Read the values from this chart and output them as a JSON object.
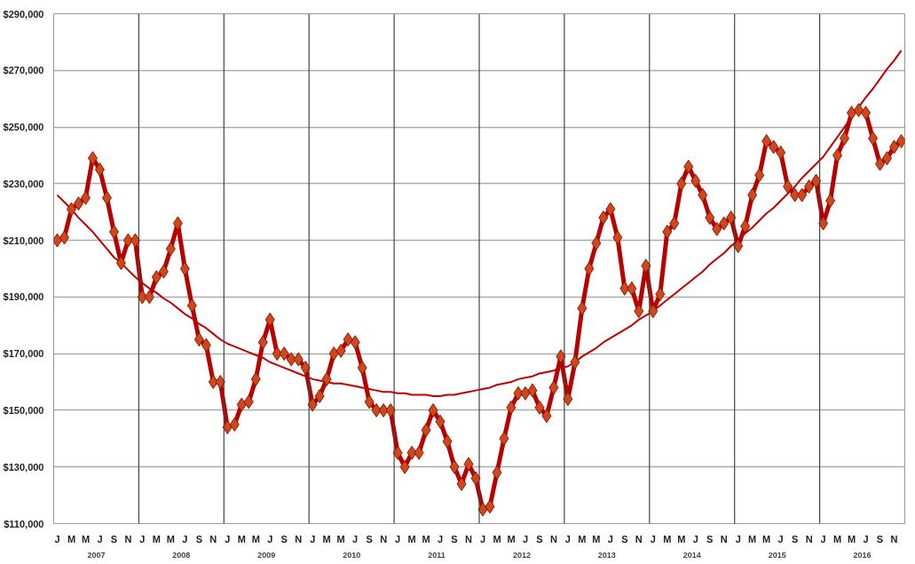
{
  "chart_data": {
    "type": "line",
    "categories": [
      "J",
      null,
      "M",
      null,
      "M",
      null,
      "J",
      null,
      "S",
      null,
      "N",
      null,
      "J",
      null,
      "M",
      null,
      "M",
      null,
      "J",
      null,
      "S",
      null,
      "N",
      null,
      "J",
      null,
      "M",
      null,
      "M",
      null,
      "J",
      null,
      "S",
      null,
      "N",
      null,
      "J",
      null,
      "M",
      null,
      "M",
      null,
      "J",
      null,
      "S",
      null,
      "N",
      null,
      "J",
      null,
      "M",
      null,
      "M",
      null,
      "J",
      null,
      "S",
      null,
      "N",
      null,
      "J",
      null,
      "M",
      null,
      "M",
      null,
      "J",
      null,
      "S",
      null,
      "N",
      null,
      "J",
      null,
      "M",
      null,
      "M",
      null,
      "J",
      null,
      "S",
      null,
      "N",
      null,
      "J",
      null,
      "M",
      null,
      "M",
      null,
      "J",
      null,
      "S",
      null,
      "N",
      null,
      "J",
      null,
      "M",
      null,
      "M",
      null,
      "J",
      null,
      "S",
      null,
      "N",
      null,
      "J",
      null,
      "M",
      null,
      "M",
      null,
      "J",
      null,
      "S",
      null,
      "N",
      null
    ],
    "series": [
      {
        "type": "line",
        "color": "#b80000",
        "marker": "diamond",
        "values": [
          210000,
          211000,
          221000,
          223000,
          225000,
          239000,
          235000,
          225000,
          213000,
          202000,
          210000,
          210000,
          190000,
          190000,
          197000,
          199000,
          207000,
          216000,
          200000,
          187000,
          175000,
          173000,
          160000,
          160000,
          144000,
          145000,
          152000,
          153000,
          161000,
          174000,
          182000,
          170000,
          170000,
          168000,
          168000,
          165000,
          152000,
          155000,
          161000,
          170000,
          171000,
          175000,
          174000,
          165000,
          153000,
          150000,
          150000,
          150000,
          135000,
          130000,
          135000,
          135000,
          143000,
          150000,
          146000,
          139000,
          130000,
          124000,
          131000,
          126000,
          115000,
          116000,
          128000,
          140000,
          151000,
          156000,
          156000,
          157000,
          151000,
          148000,
          158000,
          169000,
          154000,
          167000,
          186000,
          200000,
          209000,
          218000,
          221000,
          211000,
          193000,
          193000,
          185000,
          201000,
          185000,
          191000,
          213000,
          216000,
          230000,
          236000,
          231000,
          226000,
          218000,
          214000,
          216000,
          218000,
          208000,
          215000,
          226000,
          233000,
          245000,
          243000,
          241000,
          229000,
          226000,
          226000,
          229000,
          231000,
          216000,
          224000,
          240000,
          246000,
          255000,
          256000,
          255000,
          246000,
          237000,
          239000,
          243000,
          245000
        ]
      },
      {
        "type": "line",
        "color": "#c00000",
        "marker": "none",
        "values": [
          226000,
          223500,
          221000,
          218000,
          215500,
          213000,
          210000,
          207000,
          204000,
          202000,
          199500,
          197000,
          195000,
          193000,
          191500,
          189500,
          188000,
          186000,
          184000,
          182500,
          180500,
          179000,
          177000,
          175000,
          173500,
          172500,
          171500,
          170500,
          169500,
          168500,
          167000,
          166000,
          165000,
          164000,
          163000,
          162000,
          161000,
          160500,
          160000,
          159500,
          159500,
          159000,
          158500,
          158000,
          157500,
          157000,
          156500,
          156500,
          156000,
          156000,
          155500,
          155500,
          155500,
          155000,
          155000,
          155500,
          155500,
          156000,
          156500,
          157000,
          157500,
          158000,
          159000,
          159500,
          160000,
          161000,
          161500,
          162000,
          163000,
          163500,
          164000,
          165000,
          165500,
          167000,
          169000,
          170500,
          172000,
          174000,
          175500,
          177000,
          178500,
          180000,
          182000,
          183500,
          185000,
          187000,
          189000,
          191000,
          193000,
          195000,
          197000,
          199000,
          201500,
          203500,
          205500,
          208000,
          210000,
          212500,
          214500,
          217000,
          219500,
          221500,
          224000,
          226500,
          229000,
          232000,
          234500,
          237000,
          239500,
          243000,
          246500,
          250000,
          253500,
          257000,
          260500,
          263500,
          267000,
          270500,
          273500,
          277000
        ]
      }
    ],
    "ylim": [
      110000,
      290000
    ],
    "yticks": [
      {
        "value": 110000,
        "label": "$110,000"
      },
      {
        "value": 130000,
        "label": "$130,000"
      },
      {
        "value": 150000,
        "label": "$150,000"
      },
      {
        "value": 170000,
        "label": "$170,000"
      },
      {
        "value": 190000,
        "label": "$190,000"
      },
      {
        "value": 210000,
        "label": "$210,000"
      },
      {
        "value": 230000,
        "label": "$230,000"
      },
      {
        "value": 250000,
        "label": "$250,000"
      },
      {
        "value": 270000,
        "label": "$270,000"
      },
      {
        "value": 290000,
        "label": "$290,000"
      }
    ],
    "annotations": [
      "2007",
      "2008",
      "2009",
      "2010",
      "2011",
      "2012",
      "2013",
      "2014",
      "2015",
      "2016"
    ],
    "grid": "y"
  }
}
